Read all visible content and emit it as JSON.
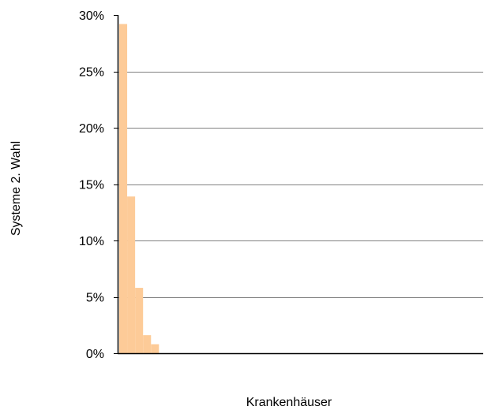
{
  "chart_data": {
    "type": "bar",
    "title": "",
    "xlabel": "Krankenhäuser",
    "ylabel": "Systeme 2. Wahl",
    "ylim": [
      0,
      0.3
    ],
    "y_ticks": [
      0,
      0.05,
      0.1,
      0.15,
      0.2,
      0.25,
      0.3
    ],
    "y_tick_labels": [
      "0%",
      "5%",
      "10%",
      "15%",
      "20%",
      "25%",
      "30%"
    ],
    "grid": true,
    "legend": "none",
    "category_count": 46,
    "values": [
      0.292,
      0.139,
      0.058,
      0.016,
      0.008
    ],
    "colors": {
      "bar": "#fdcb98",
      "grid": "#808080",
      "axis": "#000000",
      "text": "#000000"
    }
  }
}
